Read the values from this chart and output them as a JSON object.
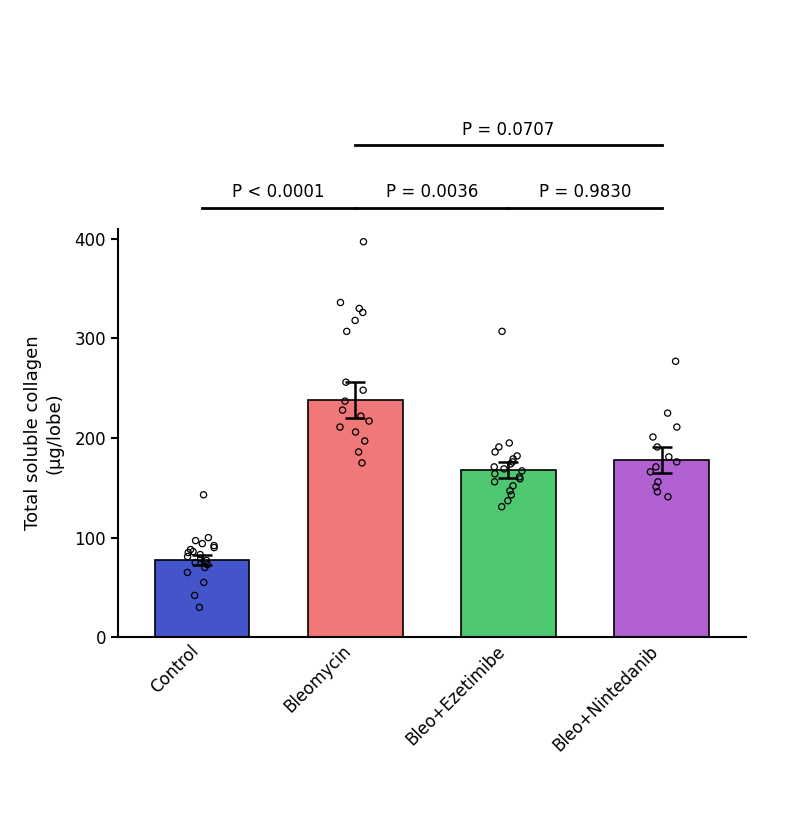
{
  "categories": [
    "Control",
    "Bleomycin",
    "Bleo+Ezetimibe",
    "Bleo+Nintedanib"
  ],
  "bar_means": [
    78,
    238,
    168,
    178
  ],
  "bar_sem": [
    5,
    18,
    8,
    13
  ],
  "bar_colors": [
    "#4455CC",
    "#F07878",
    "#4DC870",
    "#B060D0"
  ],
  "bar_edgecolor": "#000000",
  "ylabel": "Total soluble collagen\n(μg/lobe)",
  "ylim": [
    0,
    410
  ],
  "yticks": [
    0,
    100,
    200,
    300,
    400
  ],
  "dot_data_control": [
    143,
    100,
    97,
    94,
    92,
    90,
    88,
    86,
    85,
    83,
    81,
    79,
    77,
    75,
    73,
    70,
    65,
    55,
    42,
    30
  ],
  "dot_data_bleomycin": [
    397,
    336,
    330,
    326,
    318,
    307,
    256,
    248,
    237,
    228,
    222,
    217,
    211,
    206,
    197,
    186,
    175
  ],
  "dot_data_bleoezetimibe": [
    307,
    195,
    191,
    186,
    182,
    179,
    176,
    174,
    171,
    169,
    167,
    164,
    161,
    159,
    156,
    152,
    147,
    143,
    137,
    131
  ],
  "dot_data_bleonintedanib": [
    277,
    225,
    211,
    201,
    191,
    181,
    176,
    171,
    166,
    156,
    151,
    146,
    141
  ],
  "background_color": "#ffffff",
  "axis_fontsize": 13,
  "tick_fontsize": 12,
  "sig_fontsize": 12
}
